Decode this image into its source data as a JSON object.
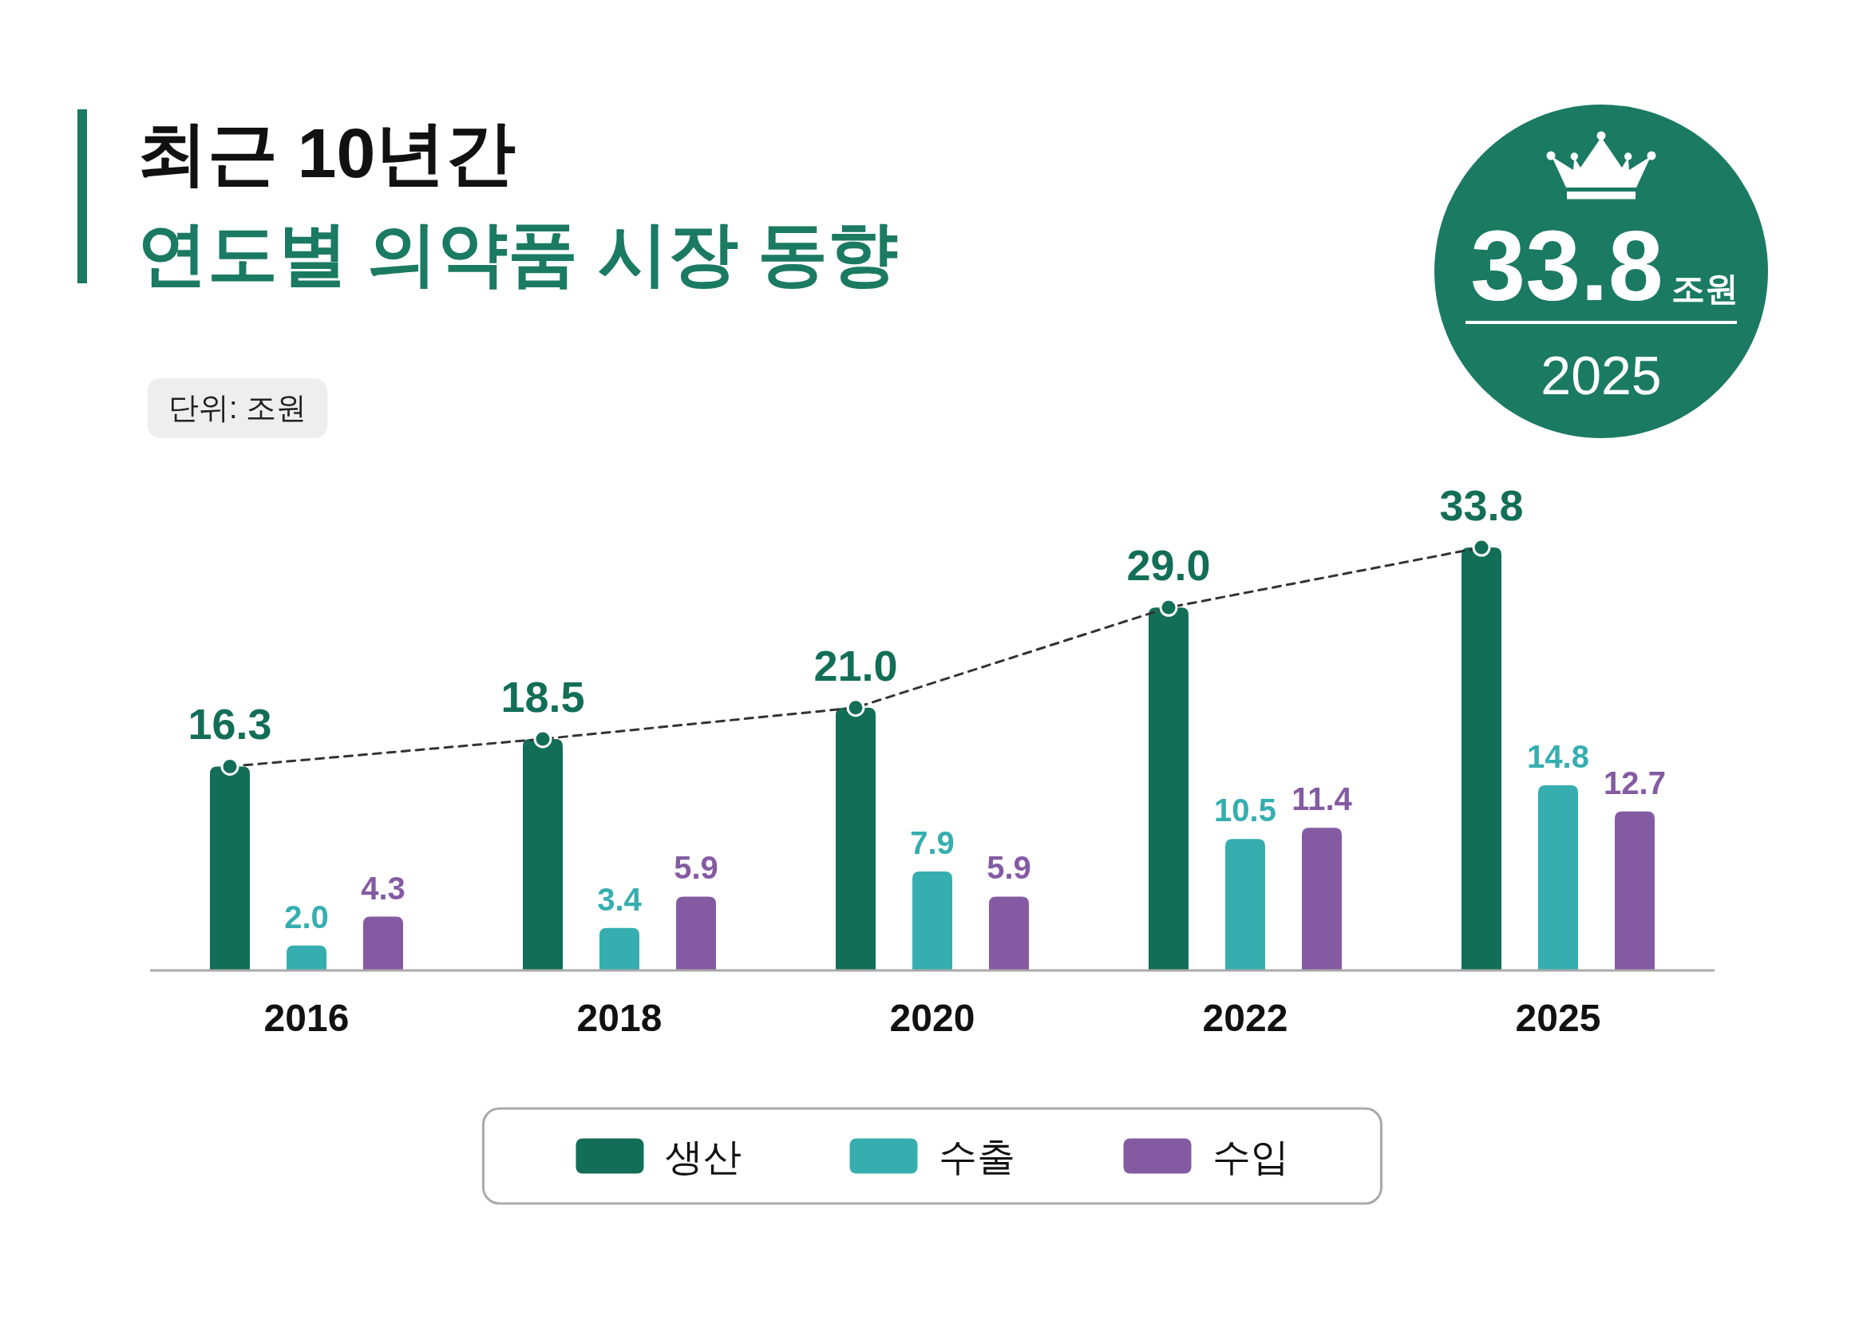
{
  "chart_data": [
    {
      "type": "bar",
      "title": "최근 10년간",
      "subtitle": "연도별 의약품 시장 동향",
      "annotations": [
        "단위: 조원"
      ],
      "categories": [
        "2016",
        "2018",
        "2020",
        "2022",
        "2025"
      ],
      "series": [
        {
          "name": "생산",
          "color": "#136e57",
          "values": [
            16.3,
            18.5,
            21.0,
            29.0,
            33.8
          ],
          "value_labels": [
            "16.3",
            "18.5",
            "21.0",
            "29.0",
            "33.8"
          ]
        },
        {
          "name": "수출",
          "color": "#36aeb0",
          "values": [
            2.0,
            3.4,
            7.9,
            10.5,
            14.8
          ],
          "value_labels": [
            "2.0",
            "3.4",
            "7.9",
            "10.5",
            "14.8"
          ]
        },
        {
          "name": "수입",
          "color": "#845ba3",
          "values": [
            4.3,
            5.9,
            5.9,
            11.4,
            12.7
          ],
          "value_labels": [
            "4.3",
            "5.9",
            "5.9",
            "11.4",
            "12.7"
          ]
        },
        {
          "type": "line",
          "color": "#333333",
          "colors": [
            "#136e57",
            "#136e57",
            "#136e57",
            "#136e57",
            "#136e57"
          ],
          "values": [
            16.3,
            18.5,
            21.0,
            29.0,
            33.8
          ],
          "line_style": "dashed",
          "marker": "circle"
        }
      ],
      "legend": "bottom"
    },
    {
      "type": "other",
      "annotations": [
        "33.8",
        "조원",
        "2025"
      ]
    }
  ]
}
